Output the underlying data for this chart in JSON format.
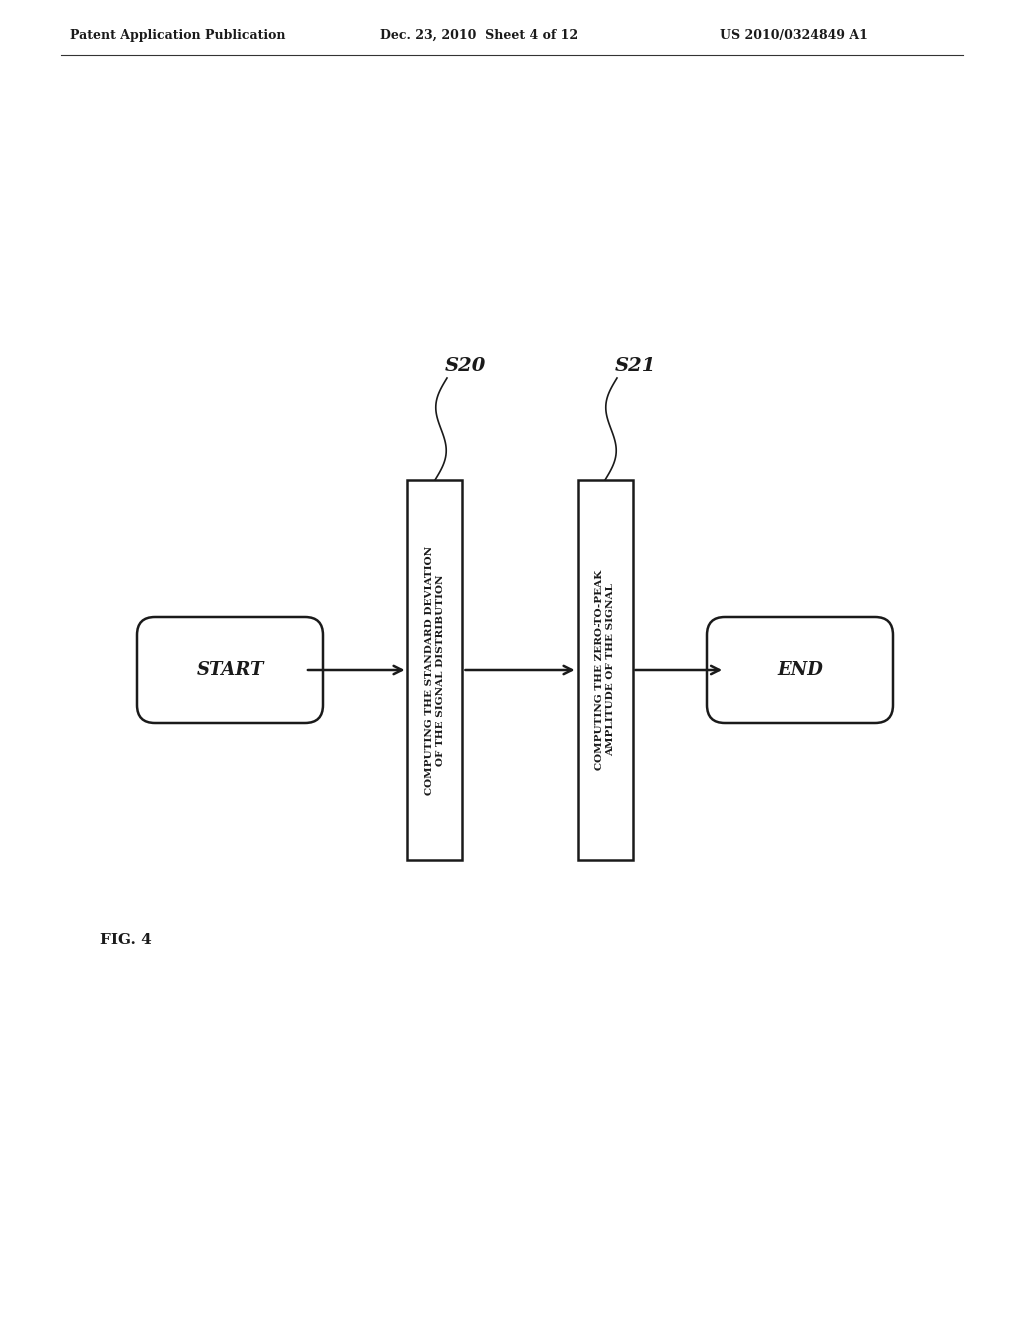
{
  "bg_color": "#ffffff",
  "header_left": "Patent Application Publication",
  "header_mid": "Dec. 23, 2010  Sheet 4 of 12",
  "header_right": "US 2010/0324849 A1",
  "fig_label": "FIG. 4",
  "start_label": "START",
  "end_label": "END",
  "step1_label": "S20",
  "step2_label": "S21",
  "step1_text": "COMPUTING THE STANDARD DEVIATION\nOF THE SIGNAL DISTRIBUTION",
  "step2_text": "COMPUTING THE ZERO-TO-PEAK\nAMPLITUDE OF THE SIGNAL"
}
